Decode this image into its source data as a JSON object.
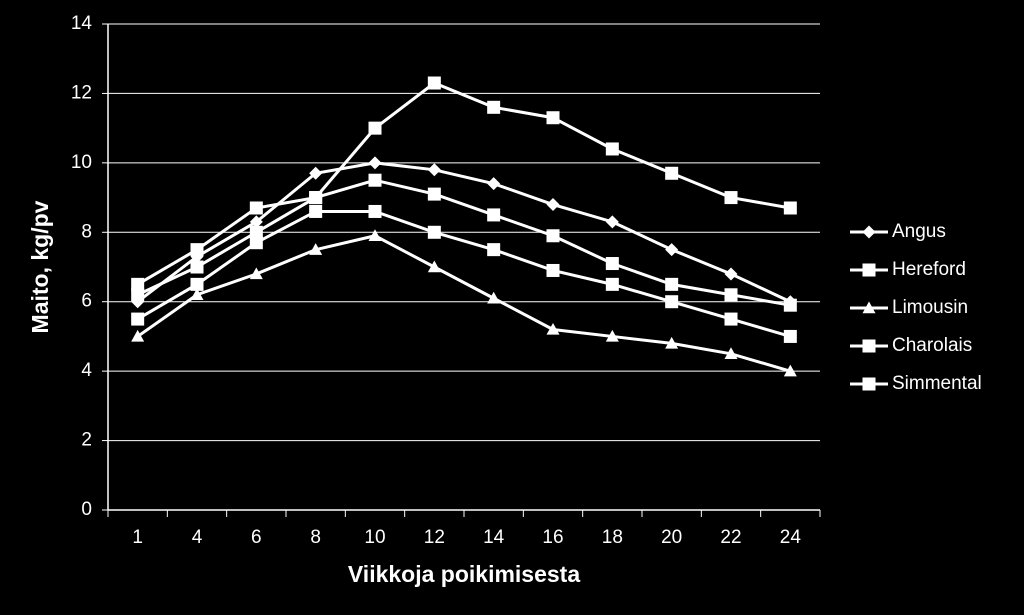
{
  "chart_data": {
    "type": "line",
    "x_label": "Viikkoja poikimisesta",
    "y_label": "Maito, kg/pv",
    "categories": [
      "1",
      "4",
      "6",
      "8",
      "10",
      "12",
      "14",
      "16",
      "18",
      "20",
      "22",
      "24"
    ],
    "series": [
      {
        "name": "Angus",
        "color": "#ffffff",
        "marker": "diamond",
        "values": [
          6.0,
          7.3,
          8.3,
          9.7,
          10.0,
          9.8,
          9.4,
          8.8,
          8.3,
          7.5,
          6.8,
          6.0
        ]
      },
      {
        "name": "Hereford",
        "color": "#ffffff",
        "marker": "square",
        "values": [
          5.5,
          6.5,
          7.7,
          8.6,
          8.6,
          8.0,
          7.5,
          6.9,
          6.5,
          6.0,
          5.5,
          5.0
        ]
      },
      {
        "name": "Limousin",
        "color": "#ffffff",
        "marker": "triangle",
        "values": [
          5.0,
          6.2,
          6.8,
          7.5,
          7.9,
          7.0,
          6.1,
          5.2,
          5.0,
          4.8,
          4.5,
          4.0
        ]
      },
      {
        "name": "Charolais",
        "color": "#ffffff",
        "marker": "square",
        "values": [
          6.2,
          7.0,
          8.0,
          9.0,
          9.5,
          9.1,
          8.5,
          7.9,
          7.1,
          6.5,
          6.2,
          5.9
        ]
      },
      {
        "name": "Simmental",
        "color": "#ffffff",
        "marker": "square",
        "values": [
          6.5,
          7.5,
          8.7,
          9.0,
          11.0,
          12.3,
          11.6,
          11.3,
          10.4,
          9.7,
          9.0,
          8.7
        ]
      }
    ],
    "ylim": [
      0,
      14
    ],
    "yticks": [
      0,
      2,
      4,
      6,
      8,
      10,
      12,
      14
    ],
    "grid": true,
    "legend": "right"
  }
}
